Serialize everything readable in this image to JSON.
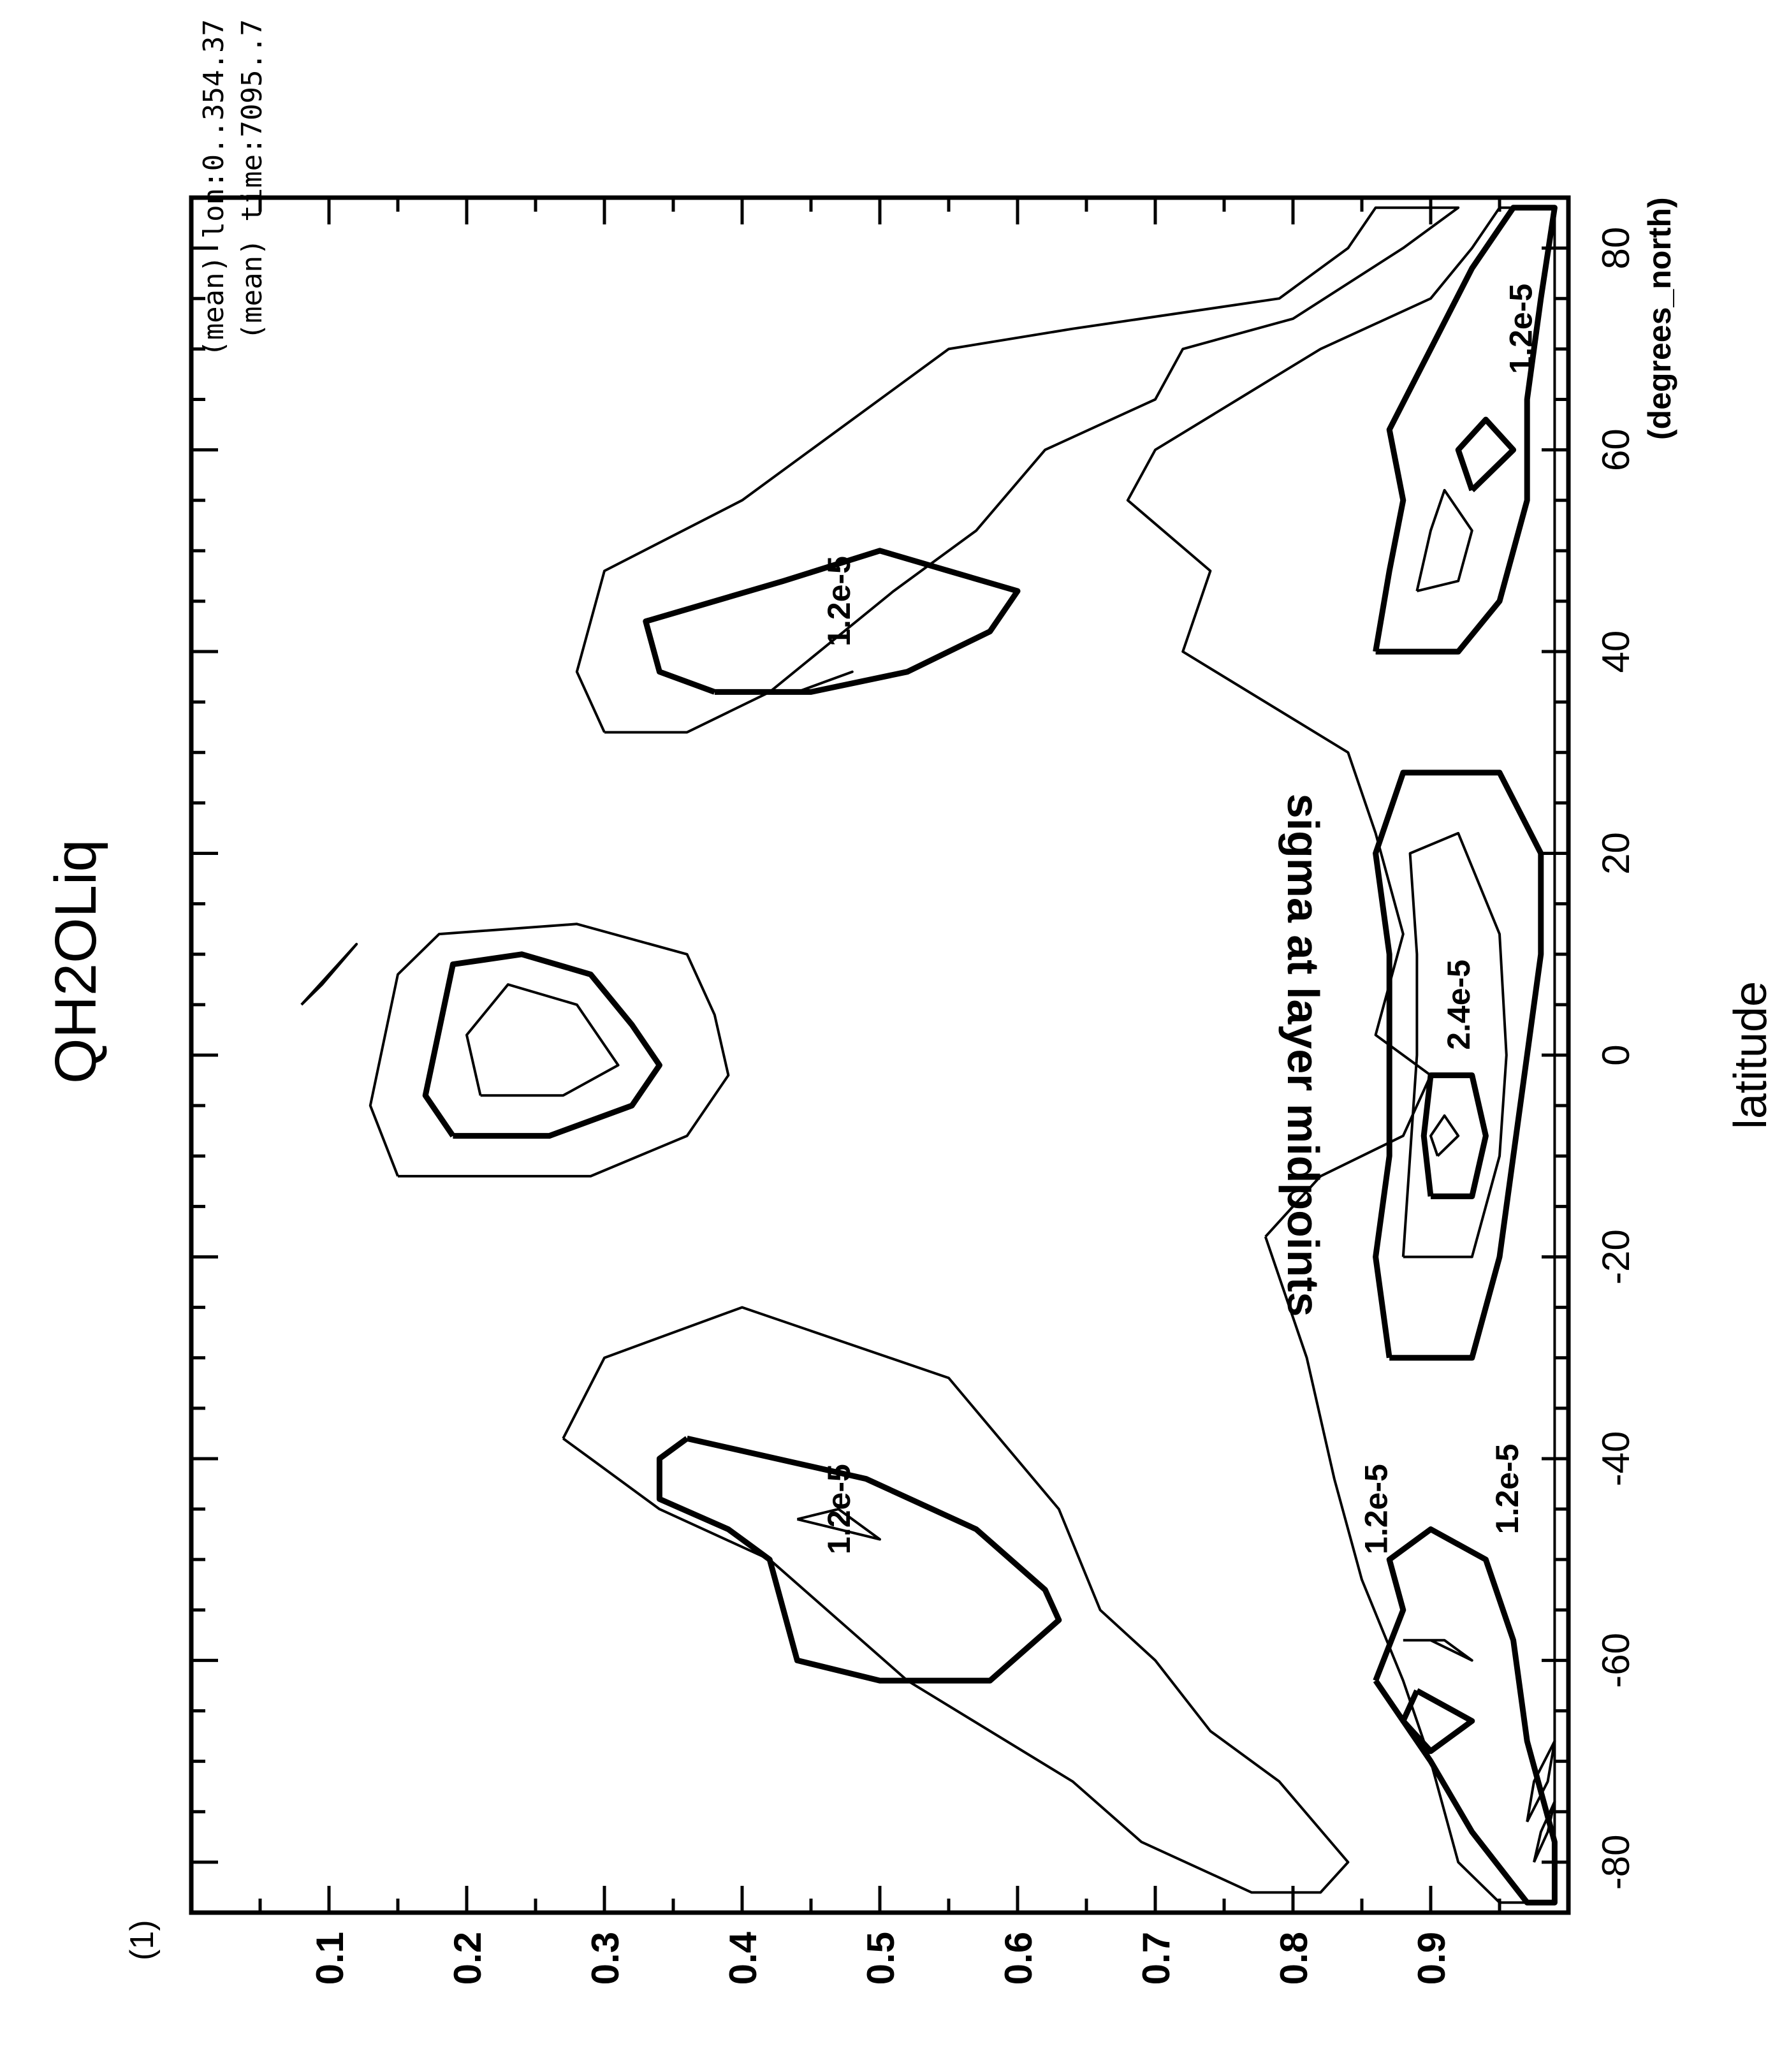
{
  "chart_data": {
    "type": "contour",
    "title": "QH2OLiq",
    "panel_label": "(1)",
    "annotations": [
      "(mean)  lon:0..354.37",
      "(mean)  time:7095..7"
    ],
    "xlabel": "latitude",
    "xunits": "(degrees_north)",
    "ylabel": "sigma at layer midpoints",
    "xlim": [
      -85,
      85
    ],
    "ylim": [
      0.0,
      1.0
    ],
    "y_inverted": true,
    "x_ticks": [
      -80,
      -60,
      -40,
      -20,
      0,
      20,
      40,
      60,
      80
    ],
    "x_tick_labels": [
      "-80",
      "-60",
      "-40",
      "-20",
      "0",
      "20",
      "40",
      "60",
      "80"
    ],
    "y_ticks": [
      0.1,
      0.2,
      0.3,
      0.4,
      0.5,
      0.6,
      0.7,
      0.8,
      0.9
    ],
    "y_tick_labels": [
      "0.1",
      "0.2",
      "0.3",
      "0.4",
      "0.5",
      "0.6",
      "0.7",
      "0.8",
      "0.9"
    ],
    "grid": false,
    "contour_labels": [
      {
        "text": "1.2e-5",
        "x": -45,
        "y": 0.47
      },
      {
        "text": "1.2e-5",
        "x": 45,
        "y": 0.47
      },
      {
        "text": "1.2e-5",
        "x": -45,
        "y": 0.86
      },
      {
        "text": "1.2e-5",
        "x": -43,
        "y": 0.955
      },
      {
        "text": "1.2e-5",
        "x": 72,
        "y": 0.965
      },
      {
        "text": "2.4e-5",
        "x": 5,
        "y": 0.92
      }
    ],
    "contours": [
      {
        "name": "",
        "weight": "thin",
        "points": [
          [
            -38,
            0.27
          ],
          [
            -30,
            0.3
          ],
          [
            -25,
            0.4
          ],
          [
            -32,
            0.55
          ],
          [
            -45,
            0.63
          ],
          [
            -55,
            0.66
          ],
          [
            -60,
            0.7
          ],
          [
            -67,
            0.74
          ],
          [
            -72,
            0.79
          ],
          [
            -80,
            0.84
          ],
          [
            -83,
            0.82
          ],
          [
            -83,
            0.77
          ],
          [
            -78,
            0.69
          ],
          [
            -72,
            0.64
          ],
          [
            -62,
            0.52
          ],
          [
            -50,
            0.42
          ],
          [
            -45,
            0.34
          ],
          [
            -40,
            0.29
          ],
          [
            -38,
            0.27
          ]
        ]
      },
      {
        "name": "",
        "weight": "thick",
        "points": [
          [
            -38,
            0.36
          ],
          [
            -40,
            0.34
          ],
          [
            -44,
            0.34
          ],
          [
            -47,
            0.39
          ],
          [
            -50,
            0.42
          ],
          [
            -60,
            0.44
          ],
          [
            -62,
            0.5
          ],
          [
            -62,
            0.58
          ],
          [
            -56,
            0.63
          ],
          [
            -53,
            0.62
          ],
          [
            -47,
            0.57
          ],
          [
            -42,
            0.49
          ],
          [
            -38,
            0.36
          ]
        ]
      },
      {
        "name": "",
        "weight": "thin",
        "points": [
          [
            -46,
            0.44
          ],
          [
            -47,
            0.47
          ],
          [
            -48,
            0.5
          ],
          [
            -45,
            0.47
          ],
          [
            -46,
            0.44
          ]
        ]
      },
      {
        "name": "",
        "weight": "thin",
        "points": [
          [
            5,
            0.08
          ],
          [
            8,
            0.1
          ],
          [
            11,
            0.12
          ],
          [
            7,
            0.095
          ],
          [
            5,
            0.08
          ]
        ]
      },
      {
        "name": "",
        "weight": "thin",
        "points": [
          [
            -12,
            0.15
          ],
          [
            -5,
            0.13
          ],
          [
            8,
            0.15
          ],
          [
            12,
            0.18
          ],
          [
            13,
            0.28
          ],
          [
            10,
            0.36
          ],
          [
            4,
            0.38
          ],
          [
            -2,
            0.39
          ],
          [
            -8,
            0.36
          ],
          [
            -12,
            0.29
          ],
          [
            -12,
            0.18
          ],
          [
            -12,
            0.15
          ]
        ]
      },
      {
        "name": "",
        "weight": "thick",
        "points": [
          [
            -8,
            0.19
          ],
          [
            -4,
            0.17
          ],
          [
            9,
            0.19
          ],
          [
            10,
            0.24
          ],
          [
            8,
            0.29
          ],
          [
            3,
            0.32
          ],
          [
            -1,
            0.34
          ],
          [
            -5,
            0.32
          ],
          [
            -8,
            0.26
          ],
          [
            -8,
            0.19
          ]
        ]
      },
      {
        "name": "",
        "weight": "thin",
        "points": [
          [
            -4,
            0.21
          ],
          [
            2,
            0.2
          ],
          [
            7,
            0.23
          ],
          [
            5,
            0.28
          ],
          [
            -1,
            0.31
          ],
          [
            -4,
            0.27
          ],
          [
            -4,
            0.21
          ]
        ]
      },
      {
        "name": "",
        "weight": "thin",
        "points": [
          [
            32,
            0.3
          ],
          [
            38,
            0.28
          ],
          [
            48,
            0.3
          ],
          [
            55,
            0.4
          ],
          [
            60,
            0.45
          ],
          [
            70,
            0.55
          ],
          [
            72,
            0.64
          ],
          [
            75,
            0.79
          ],
          [
            80,
            0.84
          ],
          [
            84,
            0.86
          ],
          [
            84,
            0.92
          ],
          [
            80,
            0.88
          ],
          [
            73,
            0.8
          ],
          [
            70,
            0.72
          ],
          [
            65,
            0.7
          ],
          [
            60,
            0.62
          ],
          [
            52,
            0.57
          ],
          [
            46,
            0.51
          ],
          [
            36,
            0.42
          ],
          [
            32,
            0.36
          ],
          [
            32,
            0.3
          ]
        ]
      },
      {
        "name": "",
        "weight": "thick",
        "points": [
          [
            36,
            0.38
          ],
          [
            38,
            0.34
          ],
          [
            43,
            0.33
          ],
          [
            47,
            0.43
          ],
          [
            50,
            0.5
          ],
          [
            48,
            0.55
          ],
          [
            46,
            0.6
          ],
          [
            42,
            0.58
          ],
          [
            38,
            0.52
          ],
          [
            36,
            0.45
          ],
          [
            36,
            0.38
          ]
        ]
      },
      {
        "name": "",
        "weight": "thin",
        "points": [
          [
            36,
            0.44
          ],
          [
            37,
            0.46
          ],
          [
            38,
            0.48
          ],
          [
            37,
            0.46
          ],
          [
            36,
            0.44
          ]
        ]
      },
      {
        "name": "",
        "weight": "thin",
        "points": [
          [
            -18,
            0.78
          ],
          [
            -12,
            0.82
          ],
          [
            -8,
            0.88
          ],
          [
            -2,
            0.9
          ],
          [
            2,
            0.86
          ],
          [
            12,
            0.88
          ],
          [
            22,
            0.86
          ],
          [
            30,
            0.84
          ],
          [
            40,
            0.72
          ],
          [
            48,
            0.74
          ],
          [
            55,
            0.68
          ],
          [
            60,
            0.7
          ],
          [
            65,
            0.76
          ],
          [
            70,
            0.82
          ],
          [
            75,
            0.9
          ],
          [
            80,
            0.93
          ],
          [
            84,
            0.95
          ],
          [
            84,
            0.99
          ],
          [
            -84,
            0.99
          ],
          [
            -84,
            0.95
          ],
          [
            -80,
            0.92
          ],
          [
            -70,
            0.9
          ],
          [
            -62,
            0.88
          ],
          [
            -52,
            0.85
          ],
          [
            -42,
            0.83
          ],
          [
            -30,
            0.81
          ],
          [
            -18,
            0.78
          ]
        ]
      },
      {
        "name": "",
        "weight": "thick",
        "points": [
          [
            -30,
            0.87
          ],
          [
            -20,
            0.86
          ],
          [
            -10,
            0.87
          ],
          [
            0,
            0.87
          ],
          [
            10,
            0.87
          ],
          [
            20,
            0.86
          ],
          [
            28,
            0.88
          ],
          [
            28,
            0.95
          ],
          [
            20,
            0.98
          ],
          [
            10,
            0.98
          ],
          [
            0,
            0.97
          ],
          [
            -10,
            0.96
          ],
          [
            -20,
            0.95
          ],
          [
            -30,
            0.93
          ],
          [
            -30,
            0.87
          ]
        ]
      },
      {
        "name": "",
        "weight": "thin",
        "points": [
          [
            -20,
            0.88
          ],
          [
            -10,
            0.885
          ],
          [
            0,
            0.89
          ],
          [
            10,
            0.89
          ],
          [
            20,
            0.885
          ],
          [
            22,
            0.92
          ],
          [
            12,
            0.95
          ],
          [
            0,
            0.955
          ],
          [
            -10,
            0.95
          ],
          [
            -20,
            0.93
          ],
          [
            -20,
            0.88
          ]
        ]
      },
      {
        "name": "",
        "weight": "thick",
        "points": [
          [
            -14,
            0.9
          ],
          [
            -8,
            0.895
          ],
          [
            -2,
            0.9
          ],
          [
            -2,
            0.93
          ],
          [
            -8,
            0.94
          ],
          [
            -14,
            0.93
          ],
          [
            -14,
            0.9
          ]
        ]
      },
      {
        "name": "",
        "weight": "thin",
        "points": [
          [
            -10,
            0.905
          ],
          [
            -8,
            0.9
          ],
          [
            -6,
            0.91
          ],
          [
            -8,
            0.92
          ],
          [
            -10,
            0.905
          ]
        ]
      },
      {
        "name": "",
        "weight": "thick",
        "points": [
          [
            40,
            0.86
          ],
          [
            48,
            0.87
          ],
          [
            55,
            0.88
          ],
          [
            62,
            0.87
          ],
          [
            70,
            0.9
          ],
          [
            78,
            0.93
          ],
          [
            84,
            0.96
          ],
          [
            84,
            0.99
          ],
          [
            75,
            0.98
          ],
          [
            65,
            0.97
          ],
          [
            55,
            0.97
          ],
          [
            45,
            0.95
          ],
          [
            40,
            0.92
          ],
          [
            40,
            0.86
          ]
        ]
      },
      {
        "name": "",
        "weight": "thin",
        "points": [
          [
            46,
            0.89
          ],
          [
            52,
            0.9
          ],
          [
            56,
            0.91
          ],
          [
            52,
            0.93
          ],
          [
            47,
            0.92
          ],
          [
            46,
            0.89
          ]
        ]
      },
      {
        "name": "",
        "weight": "thick",
        "points": [
          [
            56,
            0.93
          ],
          [
            60,
            0.92
          ],
          [
            63,
            0.94
          ],
          [
            60,
            0.96
          ],
          [
            56,
            0.93
          ]
        ]
      },
      {
        "name": "",
        "weight": "thick",
        "points": [
          [
            -62,
            0.86
          ],
          [
            -55,
            0.88
          ],
          [
            -50,
            0.87
          ],
          [
            -47,
            0.9
          ],
          [
            -50,
            0.94
          ],
          [
            -58,
            0.96
          ],
          [
            -68,
            0.97
          ],
          [
            -78,
            0.99
          ],
          [
            -84,
            0.99
          ],
          [
            -84,
            0.97
          ],
          [
            -77,
            0.93
          ],
          [
            -70,
            0.9
          ],
          [
            -62,
            0.86
          ]
        ]
      },
      {
        "name": "",
        "weight": "thick",
        "points": [
          [
            -63,
            0.89
          ],
          [
            -66,
            0.88
          ],
          [
            -69,
            0.9
          ],
          [
            -66,
            0.93
          ],
          [
            -63,
            0.89
          ]
        ]
      },
      {
        "name": "",
        "weight": "thin",
        "points": [
          [
            -58,
            0.88
          ],
          [
            -58,
            0.9
          ],
          [
            -60,
            0.93
          ],
          [
            -58,
            0.91
          ],
          [
            -58,
            0.88
          ]
        ]
      },
      {
        "name": "",
        "weight": "thin",
        "points": [
          [
            -76,
            0.97
          ],
          [
            -72,
            0.985
          ],
          [
            -68,
            0.99
          ],
          [
            -72,
            0.975
          ],
          [
            -76,
            0.97
          ]
        ]
      },
      {
        "name": "",
        "weight": "thin",
        "points": [
          [
            -80,
            0.975
          ],
          [
            -77,
            0.985
          ],
          [
            -74,
            0.99
          ],
          [
            -77,
            0.98
          ],
          [
            -80,
            0.975
          ]
        ]
      }
    ]
  }
}
